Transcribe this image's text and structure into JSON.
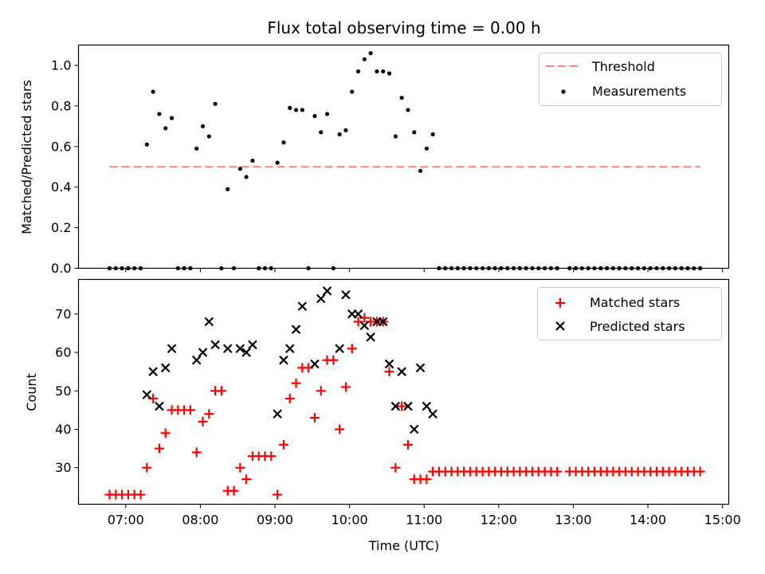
{
  "title": "Flux total observing time = 0.00 h",
  "chart_data": [
    {
      "type": "scatter",
      "panel": "top",
      "ylabel": "Matched/Predicted stars",
      "xlabel": "",
      "ylim": [
        0,
        1.1
      ],
      "yticks": [
        "0.0",
        "0.2",
        "0.4",
        "0.6",
        "0.8",
        "1.0"
      ],
      "grid": false,
      "legend_position": "top-right",
      "threshold": {
        "name": "Threshold",
        "value": 0.5,
        "x_range": [
          "06:47",
          "14:42"
        ],
        "color": "#ff7f7f"
      },
      "series": [
        {
          "name": "Measurements",
          "color": "#000000",
          "x": [
            "06:47",
            "06:52",
            "06:57",
            "07:02",
            "07:07",
            "07:12",
            "07:17",
            "07:22",
            "07:27",
            "07:32",
            "07:37",
            "07:42",
            "07:47",
            "07:52",
            "07:57",
            "08:02",
            "08:07",
            "08:12",
            "08:17",
            "08:22",
            "08:27",
            "08:32",
            "08:37",
            "08:42",
            "08:47",
            "08:52",
            "08:57",
            "09:02",
            "09:07",
            "09:12",
            "09:17",
            "09:22",
            "09:27",
            "09:32",
            "09:37",
            "09:42",
            "09:47",
            "09:52",
            "09:57",
            "10:02",
            "10:07",
            "10:12",
            "10:17",
            "10:22",
            "10:27",
            "10:32",
            "10:37",
            "10:42",
            "10:47",
            "10:52",
            "10:57",
            "11:02",
            "11:07",
            "11:12",
            "11:17",
            "11:22",
            "11:27",
            "11:32",
            "11:37",
            "11:42",
            "11:47",
            "11:52",
            "11:57",
            "12:02",
            "12:07",
            "12:12",
            "12:17",
            "12:22",
            "12:27",
            "12:32",
            "12:37",
            "12:42",
            "12:47",
            "12:57",
            "13:02",
            "13:07",
            "13:12",
            "13:17",
            "13:22",
            "13:27",
            "13:32",
            "13:37",
            "13:42",
            "13:47",
            "13:52",
            "13:57",
            "14:02",
            "14:07",
            "14:12",
            "14:17",
            "14:22",
            "14:27",
            "14:32",
            "14:37",
            "14:42"
          ],
          "y": [
            0,
            0,
            0,
            0,
            0,
            0,
            0.61,
            0.87,
            0.76,
            0.69,
            0.74,
            0,
            0,
            0,
            0.59,
            0.7,
            0.65,
            0.81,
            0,
            0.39,
            0,
            0.49,
            0.45,
            0.53,
            0,
            0,
            0,
            0.52,
            0.62,
            0.79,
            0.78,
            0.78,
            0,
            0.75,
            0.67,
            0.76,
            0,
            0.66,
            0.68,
            0.87,
            0.97,
            1.03,
            1.06,
            0.97,
            0.97,
            0.96,
            0.65,
            0.84,
            0.78,
            0.67,
            0.48,
            0.59,
            0.66,
            0,
            0,
            0,
            0,
            0,
            0,
            0,
            0,
            0,
            0,
            0,
            0,
            0,
            0,
            0,
            0,
            0,
            0,
            0,
            0,
            0,
            0,
            0,
            0,
            0,
            0,
            0,
            0,
            0,
            0,
            0,
            0,
            0,
            0,
            0,
            0,
            0,
            0,
            0,
            0,
            0,
            0
          ]
        }
      ]
    },
    {
      "type": "scatter",
      "panel": "bottom",
      "xlabel": "Time (UTC)",
      "ylabel": "Count",
      "ylim": [
        20.5,
        79
      ],
      "yticks": [
        "30",
        "40",
        "50",
        "60",
        "70"
      ],
      "xlim": [
        "06:22",
        "15:05"
      ],
      "xticks": [
        "07:00",
        "08:00",
        "09:00",
        "10:00",
        "11:00",
        "12:00",
        "13:00",
        "14:00",
        "15:00"
      ],
      "grid": false,
      "legend_position": "top-right",
      "series": [
        {
          "name": "Matched stars",
          "marker": "+",
          "color": "#ff0000",
          "x": [
            "06:47",
            "06:52",
            "06:57",
            "07:02",
            "07:07",
            "07:12",
            "07:17",
            "07:22",
            "07:27",
            "07:32",
            "07:37",
            "07:42",
            "07:47",
            "07:52",
            "07:57",
            "08:02",
            "08:07",
            "08:12",
            "08:17",
            "08:22",
            "08:27",
            "08:32",
            "08:37",
            "08:42",
            "08:47",
            "08:52",
            "08:57",
            "09:02",
            "09:07",
            "09:12",
            "09:17",
            "09:22",
            "09:27",
            "09:32",
            "09:37",
            "09:42",
            "09:47",
            "09:52",
            "09:57",
            "10:02",
            "10:07",
            "10:12",
            "10:17",
            "10:22",
            "10:27",
            "10:32",
            "10:37",
            "10:42",
            "10:47",
            "10:52",
            "10:57",
            "11:02",
            "11:07",
            "11:12",
            "11:17",
            "11:22",
            "11:27",
            "11:32",
            "11:37",
            "11:42",
            "11:47",
            "11:52",
            "11:57",
            "12:02",
            "12:07",
            "12:12",
            "12:17",
            "12:22",
            "12:27",
            "12:32",
            "12:37",
            "12:42",
            "12:47",
            "12:57",
            "13:02",
            "13:07",
            "13:12",
            "13:17",
            "13:22",
            "13:27",
            "13:32",
            "13:37",
            "13:42",
            "13:47",
            "13:52",
            "13:57",
            "14:02",
            "14:07",
            "14:12",
            "14:17",
            "14:22",
            "14:27",
            "14:32",
            "14:37",
            "14:42"
          ],
          "y": [
            23,
            23,
            23,
            23,
            23,
            23,
            30,
            48,
            35,
            39,
            45,
            45,
            45,
            45,
            34,
            42,
            44,
            50,
            50,
            24,
            24,
            30,
            27,
            33,
            33,
            33,
            33,
            23,
            36,
            48,
            52,
            56,
            56,
            43,
            50,
            58,
            58,
            40,
            51,
            61,
            68,
            69,
            68,
            68,
            68,
            55,
            30,
            46,
            36,
            27,
            27,
            27,
            29,
            29,
            29,
            29,
            29,
            29,
            29,
            29,
            29,
            29,
            29,
            29,
            29,
            29,
            29,
            29,
            29,
            29,
            29,
            29,
            29,
            29,
            29,
            29,
            29,
            29,
            29,
            29,
            29,
            29,
            29,
            29,
            29,
            29,
            29,
            29,
            29,
            29,
            29,
            29,
            29,
            29,
            29
          ]
        },
        {
          "name": "Predicted stars",
          "marker": "x",
          "color": "#000000",
          "x": [
            "07:17",
            "07:22",
            "07:27",
            "07:32",
            "07:37",
            "07:57",
            "08:02",
            "08:07",
            "08:12",
            "08:22",
            "08:32",
            "08:37",
            "08:42",
            "09:02",
            "09:07",
            "09:12",
            "09:17",
            "09:22",
            "09:32",
            "09:37",
            "09:42",
            "09:52",
            "09:57",
            "10:02",
            "10:07",
            "10:12",
            "10:17",
            "10:22",
            "10:27",
            "10:32",
            "10:37",
            "10:42",
            "10:47",
            "10:52",
            "10:57",
            "11:02",
            "11:07"
          ],
          "y": [
            49,
            55,
            46,
            56,
            61,
            58,
            60,
            68,
            62,
            61,
            61,
            60,
            62,
            44,
            58,
            61,
            66,
            72,
            57,
            74,
            76,
            61,
            75,
            70,
            70,
            67,
            64,
            68,
            68,
            57,
            46,
            55,
            46,
            40,
            56,
            46,
            44
          ]
        }
      ]
    }
  ]
}
